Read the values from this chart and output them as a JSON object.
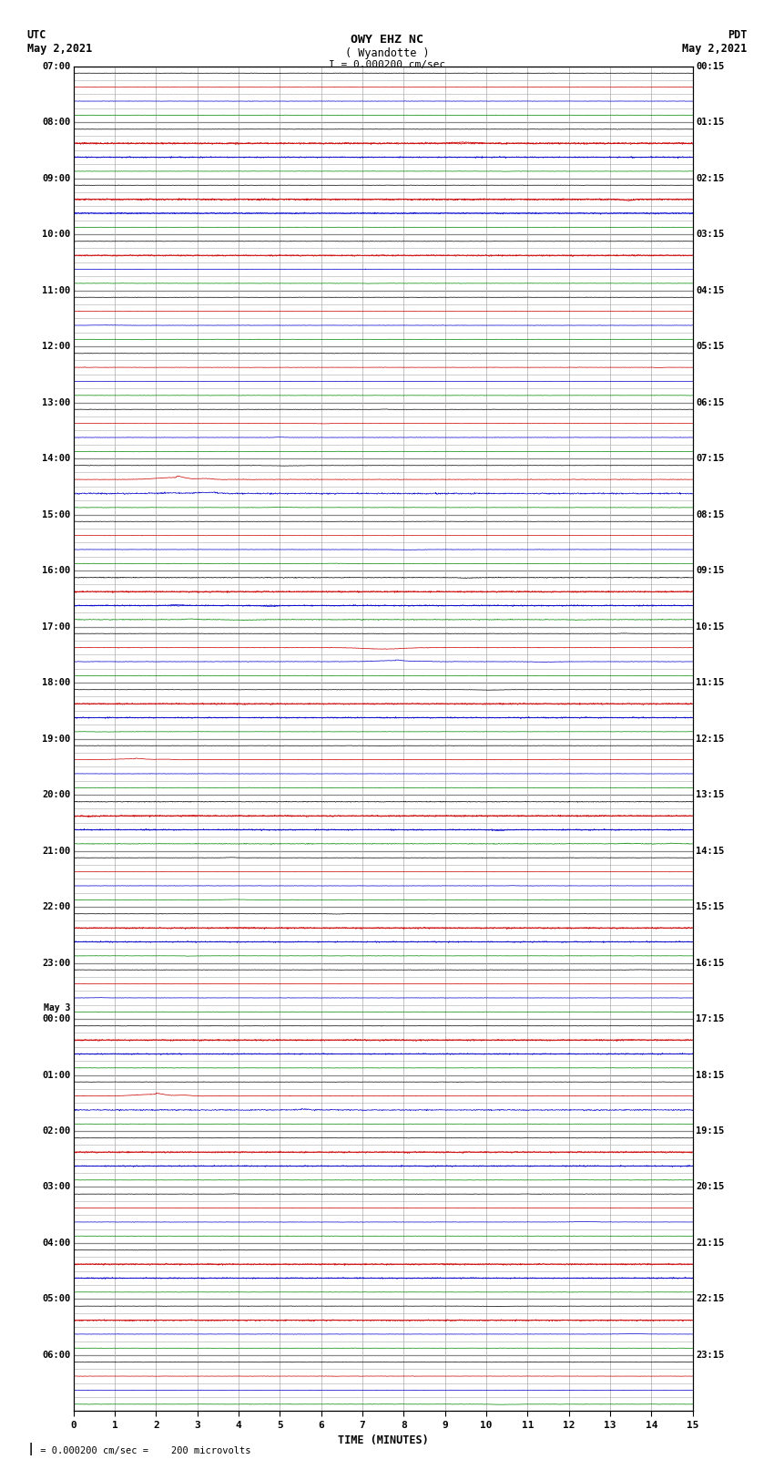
{
  "title_line1": "OWY EHZ NC",
  "title_line2": "( Wyandotte )",
  "title_line3": "I = 0.000200 cm/sec",
  "left_label_line1": "UTC",
  "left_label_line2": "May 2,2021",
  "right_label_line1": "PDT",
  "right_label_line2": "May 2,2021",
  "bottom_label": "TIME (MINUTES)",
  "scale_label": "= 0.000200 cm/sec =    200 microvolts",
  "bg_color": "#ffffff",
  "grid_color": "#aaaaaa",
  "major_grid_color": "#888888",
  "trace_colors_4": [
    "#000000",
    "#cc0000",
    "#0000cc",
    "#008800"
  ],
  "fig_width": 8.5,
  "fig_height": 16.13,
  "dpi": 100,
  "n_minutes": 15,
  "utc_hour_labels": [
    "07:00",
    "08:00",
    "09:00",
    "10:00",
    "11:00",
    "12:00",
    "13:00",
    "14:00",
    "15:00",
    "16:00",
    "17:00",
    "18:00",
    "19:00",
    "20:00",
    "21:00",
    "22:00",
    "23:00",
    "00:00",
    "01:00",
    "02:00",
    "03:00",
    "04:00",
    "05:00",
    "06:00"
  ],
  "may3_row": 17,
  "pdt_hour_labels": [
    "00:15",
    "01:15",
    "02:15",
    "03:15",
    "04:15",
    "05:15",
    "06:15",
    "07:15",
    "08:15",
    "09:15",
    "10:15",
    "11:15",
    "12:15",
    "13:15",
    "14:15",
    "15:15",
    "16:15",
    "17:15",
    "18:15",
    "19:15",
    "20:15",
    "21:15",
    "22:15",
    "23:15"
  ],
  "rows_per_hour": 4,
  "total_hours": 24,
  "noise_amp": 0.018,
  "trace_scale": 0.35
}
